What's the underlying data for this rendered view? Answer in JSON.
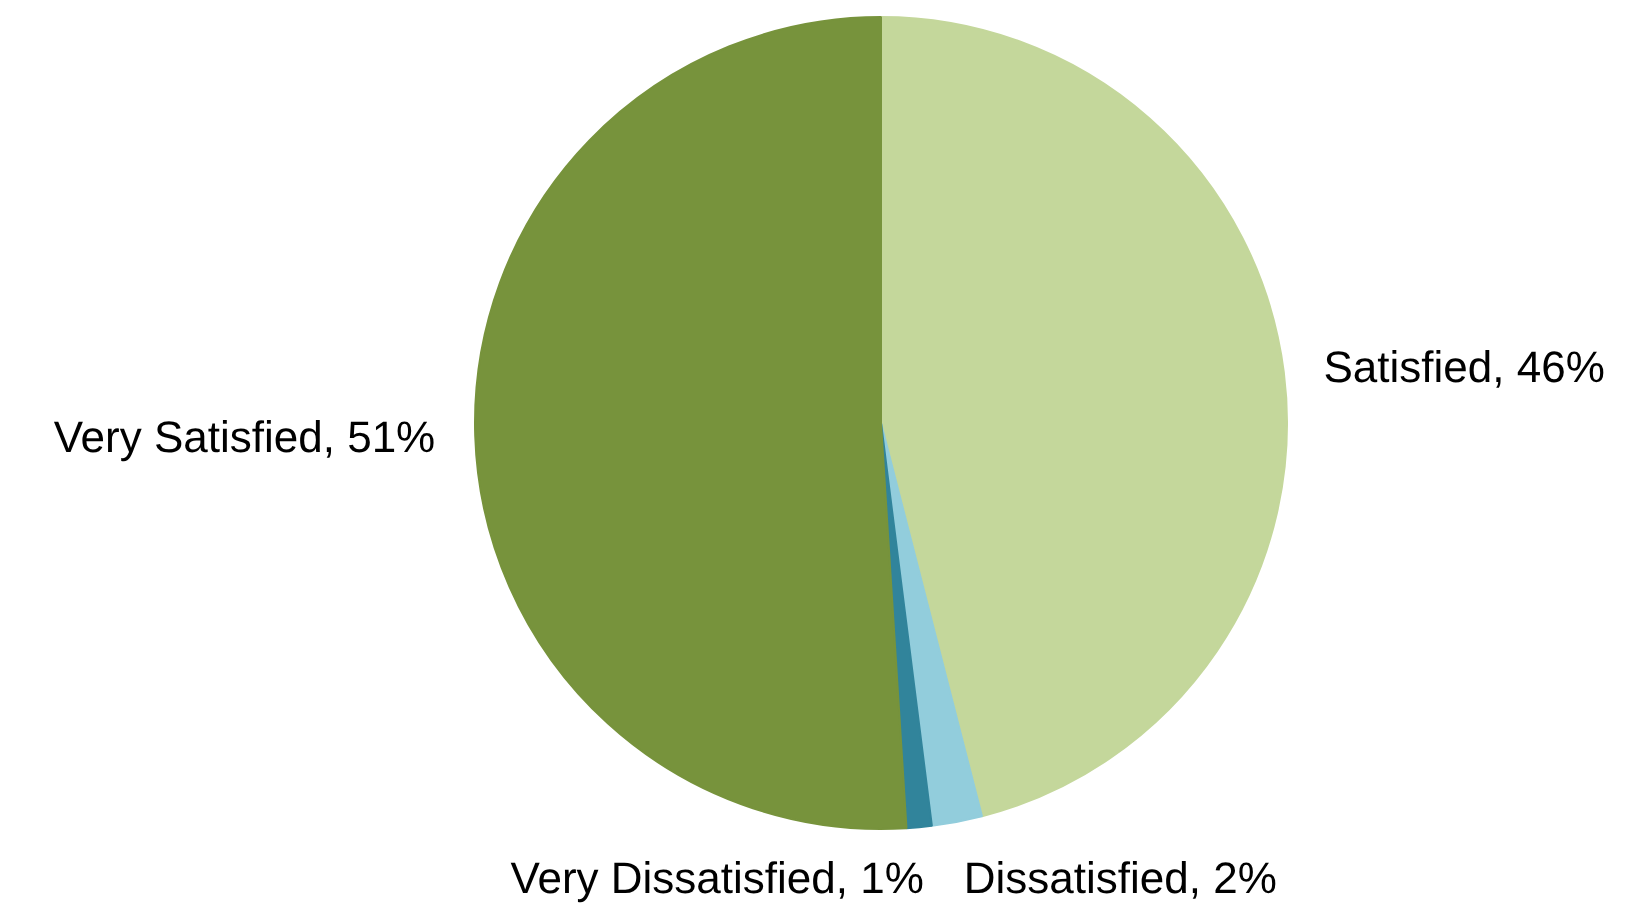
{
  "chart_data": {
    "type": "pie",
    "categories": [
      "Satisfied",
      "Dissatisfied",
      "Very Dissatisfied",
      "Very Satisfied"
    ],
    "values": [
      46,
      2,
      1,
      51
    ],
    "colors": [
      "#c4d79b",
      "#92cddc",
      "#31849b",
      "#77933c"
    ],
    "value_labels": [
      "46%",
      "2%",
      "1%",
      "51%"
    ]
  }
}
